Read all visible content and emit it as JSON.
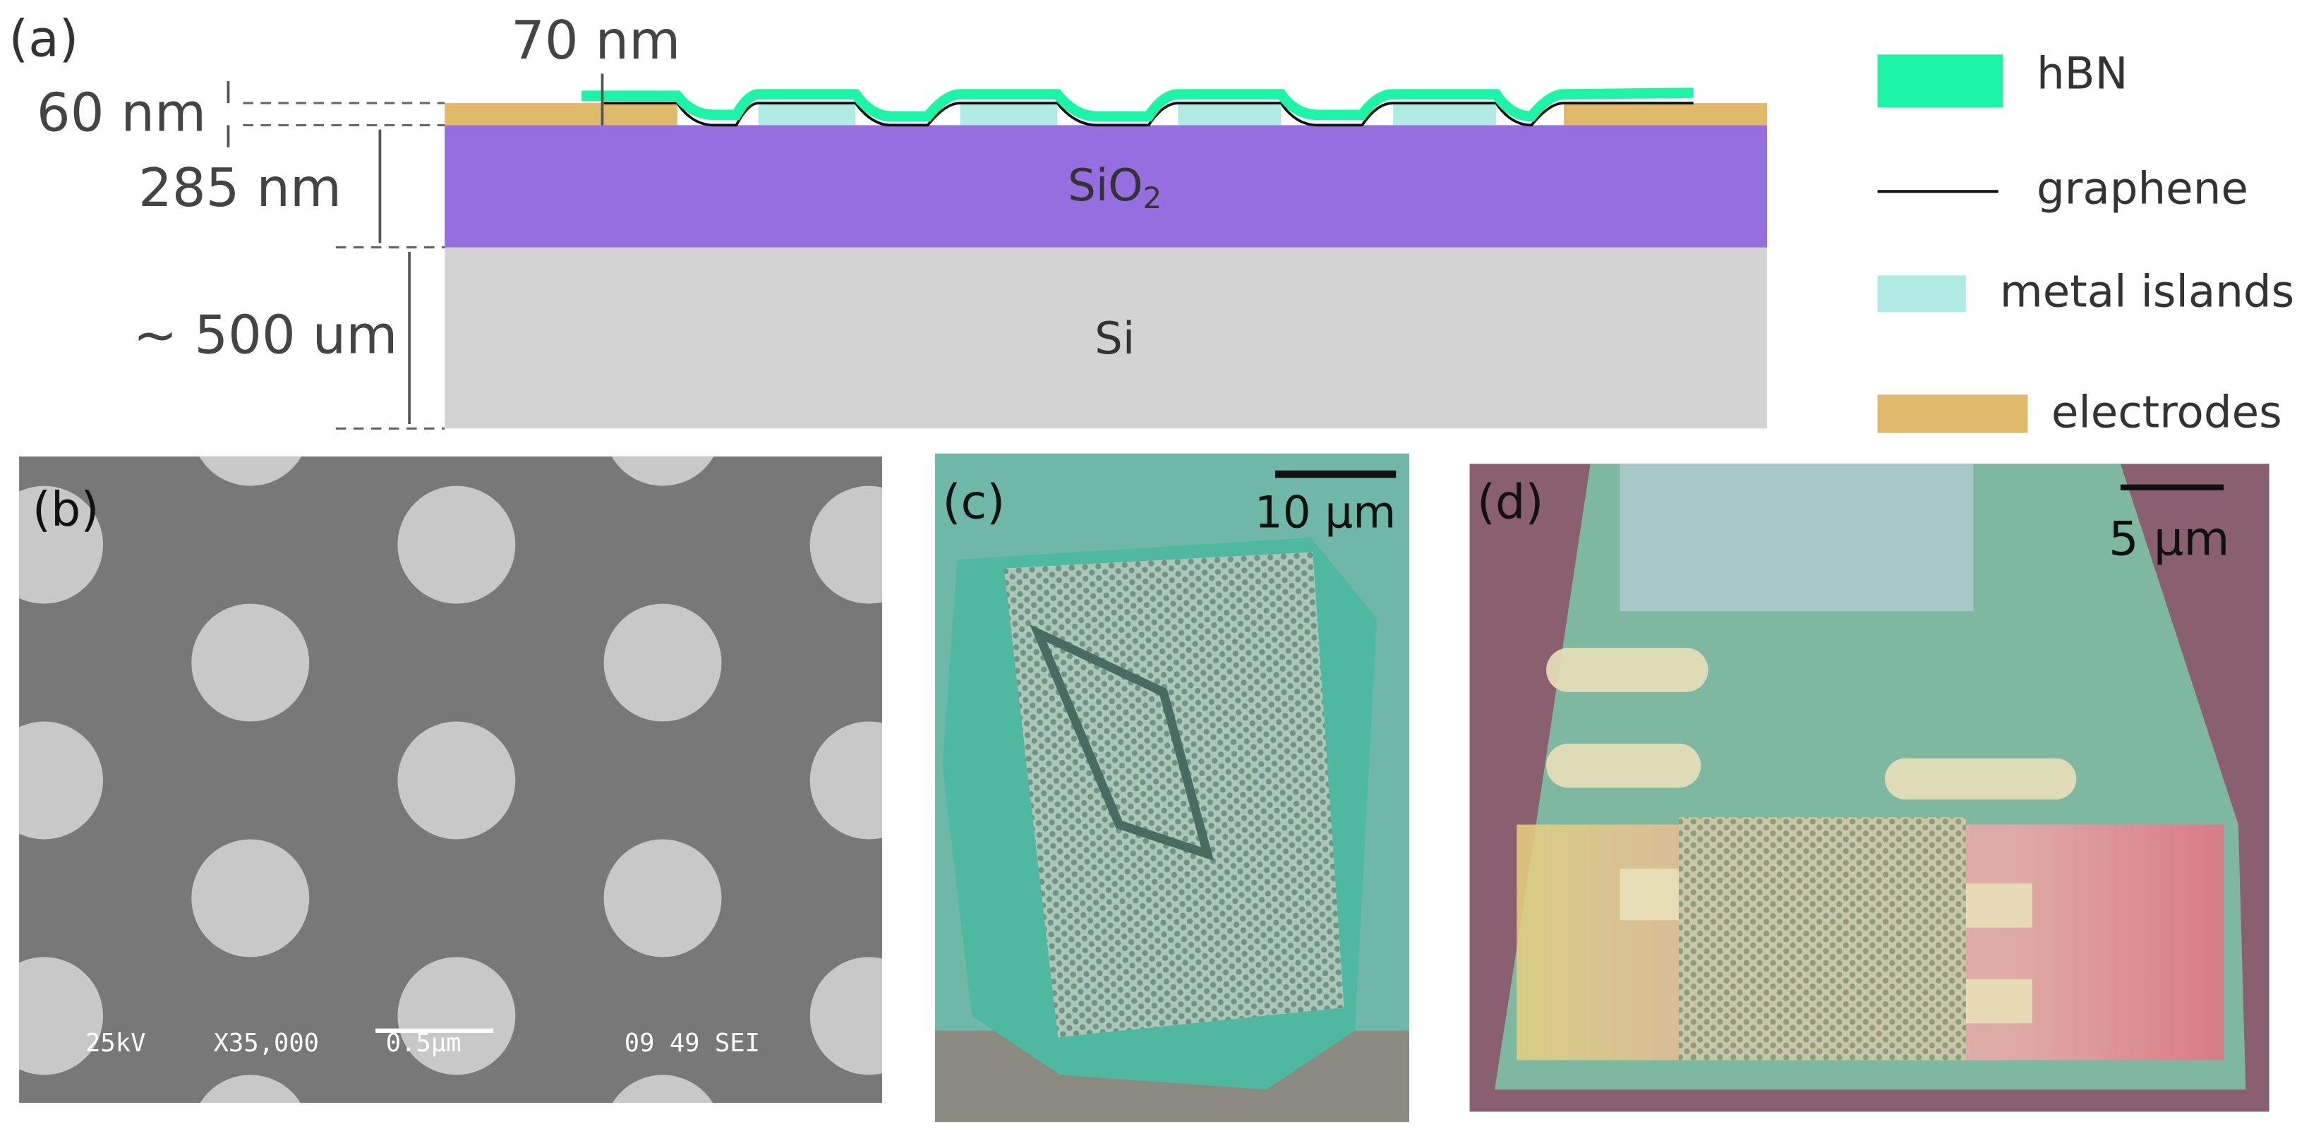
{
  "panel_a": {
    "label": "(a)",
    "dim_hbn": "70 nm",
    "dim_electrode": "60 nm",
    "dim_sio2": "285 nm",
    "dim_si": "~ 500 um",
    "sio2": {
      "text": "SiO",
      "subscript": "2"
    },
    "si": "Si",
    "legend": [
      "hBN",
      "graphene",
      "metal islands",
      "electrodes"
    ]
  },
  "panel_b": {
    "label": "(b)",
    "sem_info": [
      "25kV",
      "X35,000",
      "0.5μm",
      "09 49 SEI"
    ]
  },
  "panel_c": {
    "label": "(c)",
    "scale": "10 μm"
  },
  "panel_d": {
    "label": "(d)",
    "scale": "5 μm"
  }
}
